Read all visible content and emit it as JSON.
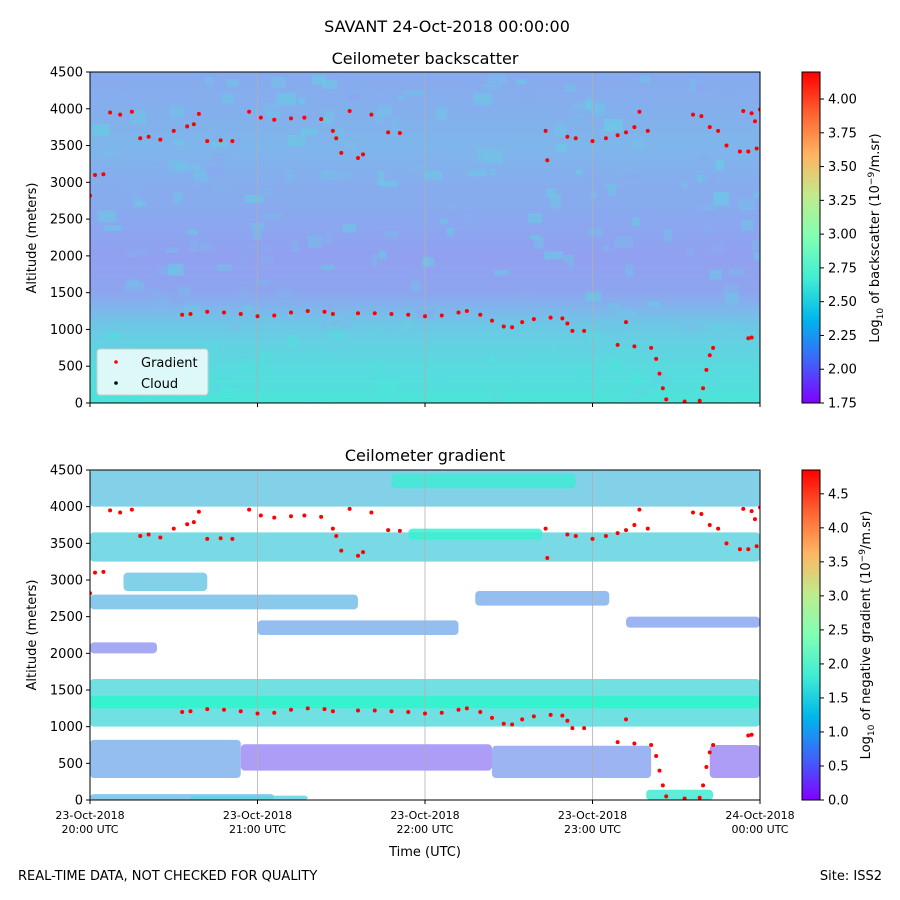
{
  "suptitle": "SAVANT 24-Oct-2018 00:00:00",
  "footer": {
    "left": "REAL-TIME DATA, NOT CHECKED FOR QUALITY",
    "right": "Site: ISS2"
  },
  "colors": {
    "gradient_marker": "#ff0000",
    "cloud_marker": "#000000",
    "grid": "#b0b0b0"
  },
  "chart_data": [
    {
      "type": "heatmap",
      "title": "Ceilometer backscatter",
      "ylabel": "Altitude (meters)",
      "xlabel": "",
      "xlim_hours": [
        20,
        24
      ],
      "ylim": [
        0,
        4500
      ],
      "yticks": [
        0,
        500,
        1000,
        1500,
        2000,
        2500,
        3000,
        3500,
        4000,
        4500
      ],
      "x_tick_hours": [
        20,
        21,
        22,
        23,
        24
      ],
      "grid": "vertical at hour ticks",
      "colorbar": {
        "label_parts": [
          "Log",
          "10",
          " of backscatter (10",
          "−9",
          "/m.sr)"
        ],
        "range": [
          1.75,
          4.2
        ],
        "ticks": [
          "1.75",
          "2.00",
          "2.25",
          "2.50",
          "2.75",
          "3.00",
          "3.25",
          "3.50",
          "3.75",
          "4.00"
        ],
        "tick_values": [
          1.75,
          2.0,
          2.25,
          2.5,
          2.75,
          3.0,
          3.25,
          3.5,
          3.75,
          4.0
        ],
        "colormap": "rainbow"
      },
      "legend": {
        "placement": "lower-left",
        "entries": [
          {
            "label": "Gradient",
            "color": "#ff0000"
          },
          {
            "label": "Cloud",
            "color": "#000000"
          }
        ]
      },
      "background_profile": {
        "altitude": [
          0,
          200,
          500,
          800,
          1100,
          1300,
          1500,
          2000,
          2500,
          3000,
          3500,
          3800,
          4200,
          4500
        ],
        "log_backscatter": [
          2.62,
          2.58,
          2.55,
          2.5,
          2.44,
          2.36,
          2.3,
          2.28,
          2.31,
          2.33,
          2.37,
          2.35,
          2.33,
          2.32
        ]
      }
    },
    {
      "type": "heatmap",
      "title": "Ceilometer gradient",
      "ylabel": "Altitude (meters)",
      "xlabel": "Time (UTC)",
      "xlim_hours": [
        20,
        24
      ],
      "ylim": [
        0,
        4500
      ],
      "yticks": [
        0,
        500,
        1000,
        1500,
        2000,
        2500,
        3000,
        3500,
        4000,
        4500
      ],
      "x_tick_hours": [
        20,
        21,
        22,
        23,
        24
      ],
      "xticklabels": [
        [
          "23-Oct-2018",
          "20:00 UTC"
        ],
        [
          "23-Oct-2018",
          "21:00 UTC"
        ],
        [
          "23-Oct-2018",
          "22:00 UTC"
        ],
        [
          "23-Oct-2018",
          "23:00 UTC"
        ],
        [
          "24-Oct-2018",
          "00:00 UTC"
        ]
      ],
      "grid": "vertical at hour ticks",
      "colorbar": {
        "label_parts": [
          "Log",
          "10",
          " of negative gradient (10",
          "−9",
          "/m.sr)"
        ],
        "range": [
          0.0,
          4.85
        ],
        "ticks": [
          "0.0",
          "0.5",
          "1.0",
          "1.5",
          "2.0",
          "2.5",
          "3.0",
          "3.5",
          "4.0",
          "4.5"
        ],
        "tick_values": [
          0.0,
          0.5,
          1.0,
          1.5,
          2.0,
          2.5,
          3.0,
          3.5,
          4.0,
          4.5
        ],
        "colormap": "rainbow"
      },
      "gradient_bands": [
        {
          "alt_low": 0,
          "alt_high": 80,
          "t_start": 20.0,
          "t_end": 21.1,
          "value": 1.3
        },
        {
          "alt_low": 0,
          "alt_high": 60,
          "t_start": 20.6,
          "t_end": 21.3,
          "value": 1.5
        },
        {
          "alt_low": 0,
          "alt_high": 140,
          "t_start": 23.32,
          "t_end": 23.72,
          "value": 1.8
        },
        {
          "alt_low": 300,
          "alt_high": 820,
          "t_start": 20.0,
          "t_end": 20.9,
          "value": 1.2
        },
        {
          "alt_low": 400,
          "alt_high": 760,
          "t_start": 20.9,
          "t_end": 22.4,
          "value": 0.9
        },
        {
          "alt_low": 300,
          "alt_high": 740,
          "t_start": 22.4,
          "t_end": 23.35,
          "value": 1.1
        },
        {
          "alt_low": 300,
          "alt_high": 750,
          "t_start": 23.7,
          "t_end": 24.0,
          "value": 0.9
        },
        {
          "alt_low": 1000,
          "alt_high": 1650,
          "t_start": 20.0,
          "t_end": 24.0,
          "value": 1.6
        },
        {
          "alt_low": 1250,
          "alt_high": 1420,
          "t_start": 20.0,
          "t_end": 24.0,
          "value": 2.0
        },
        {
          "alt_low": 2000,
          "alt_high": 2150,
          "t_start": 20.0,
          "t_end": 20.4,
          "value": 1.0
        },
        {
          "alt_low": 2250,
          "alt_high": 2450,
          "t_start": 21.0,
          "t_end": 22.2,
          "value": 1.2
        },
        {
          "alt_low": 2350,
          "alt_high": 2500,
          "t_start": 23.2,
          "t_end": 24.0,
          "value": 1.1
        },
        {
          "alt_low": 2600,
          "alt_high": 2800,
          "t_start": 20.0,
          "t_end": 21.6,
          "value": 1.3
        },
        {
          "alt_low": 2650,
          "alt_high": 2850,
          "t_start": 22.3,
          "t_end": 23.1,
          "value": 1.2
        },
        {
          "alt_low": 2850,
          "alt_high": 3100,
          "t_start": 20.2,
          "t_end": 20.7,
          "value": 1.4
        },
        {
          "alt_low": 3250,
          "alt_high": 3650,
          "t_start": 20.0,
          "t_end": 24.0,
          "value": 1.5
        },
        {
          "alt_low": 3550,
          "alt_high": 3700,
          "t_start": 21.9,
          "t_end": 22.7,
          "value": 1.9
        },
        {
          "alt_low": 4000,
          "alt_high": 4500,
          "t_start": 20.0,
          "t_end": 24.0,
          "value": 1.4
        },
        {
          "alt_low": 4250,
          "alt_high": 4450,
          "t_start": 21.8,
          "t_end": 22.9,
          "value": 1.8
        }
      ]
    }
  ],
  "gradient_points": [
    {
      "t": 20.0,
      "alt": 2820
    },
    {
      "t": 20.03,
      "alt": 3100
    },
    {
      "t": 20.08,
      "alt": 3110
    },
    {
      "t": 20.12,
      "alt": 3950
    },
    {
      "t": 20.18,
      "alt": 3920
    },
    {
      "t": 20.25,
      "alt": 3960
    },
    {
      "t": 20.3,
      "alt": 3600
    },
    {
      "t": 20.35,
      "alt": 3620
    },
    {
      "t": 20.42,
      "alt": 3580
    },
    {
      "t": 20.5,
      "alt": 3700
    },
    {
      "t": 20.58,
      "alt": 3760
    },
    {
      "t": 20.62,
      "alt": 3790
    },
    {
      "t": 20.65,
      "alt": 3930
    },
    {
      "t": 20.7,
      "alt": 3560
    },
    {
      "t": 20.78,
      "alt": 3570
    },
    {
      "t": 20.85,
      "alt": 3560
    },
    {
      "t": 20.95,
      "alt": 3960
    },
    {
      "t": 21.02,
      "alt": 3880
    },
    {
      "t": 21.1,
      "alt": 3850
    },
    {
      "t": 21.2,
      "alt": 3870
    },
    {
      "t": 21.28,
      "alt": 3880
    },
    {
      "t": 21.38,
      "alt": 3860
    },
    {
      "t": 21.45,
      "alt": 3700
    },
    {
      "t": 21.47,
      "alt": 3600
    },
    {
      "t": 21.5,
      "alt": 3400
    },
    {
      "t": 21.55,
      "alt": 3970
    },
    {
      "t": 21.6,
      "alt": 3330
    },
    {
      "t": 21.63,
      "alt": 3380
    },
    {
      "t": 21.68,
      "alt": 3920
    },
    {
      "t": 21.78,
      "alt": 3680
    },
    {
      "t": 21.85,
      "alt": 3670
    },
    {
      "t": 22.72,
      "alt": 3700
    },
    {
      "t": 22.73,
      "alt": 3300
    },
    {
      "t": 22.85,
      "alt": 3620
    },
    {
      "t": 22.9,
      "alt": 3600
    },
    {
      "t": 23.0,
      "alt": 3560
    },
    {
      "t": 23.08,
      "alt": 3600
    },
    {
      "t": 23.15,
      "alt": 3640
    },
    {
      "t": 23.2,
      "alt": 3680
    },
    {
      "t": 23.25,
      "alt": 3750
    },
    {
      "t": 23.28,
      "alt": 3960
    },
    {
      "t": 23.33,
      "alt": 3700
    },
    {
      "t": 23.6,
      "alt": 3920
    },
    {
      "t": 23.65,
      "alt": 3900
    },
    {
      "t": 23.7,
      "alt": 3750
    },
    {
      "t": 23.75,
      "alt": 3700
    },
    {
      "t": 23.8,
      "alt": 3500
    },
    {
      "t": 23.88,
      "alt": 3420
    },
    {
      "t": 23.93,
      "alt": 3420
    },
    {
      "t": 23.98,
      "alt": 3460
    },
    {
      "t": 23.9,
      "alt": 3970
    },
    {
      "t": 23.95,
      "alt": 3940
    },
    {
      "t": 23.97,
      "alt": 3830
    },
    {
      "t": 24.0,
      "alt": 3990
    },
    {
      "t": 20.55,
      "alt": 1200
    },
    {
      "t": 20.6,
      "alt": 1210
    },
    {
      "t": 20.7,
      "alt": 1240
    },
    {
      "t": 20.8,
      "alt": 1230
    },
    {
      "t": 20.9,
      "alt": 1210
    },
    {
      "t": 21.0,
      "alt": 1180
    },
    {
      "t": 21.1,
      "alt": 1190
    },
    {
      "t": 21.2,
      "alt": 1230
    },
    {
      "t": 21.3,
      "alt": 1250
    },
    {
      "t": 21.4,
      "alt": 1240
    },
    {
      "t": 21.45,
      "alt": 1210
    },
    {
      "t": 21.6,
      "alt": 1220
    },
    {
      "t": 21.7,
      "alt": 1220
    },
    {
      "t": 21.8,
      "alt": 1210
    },
    {
      "t": 21.9,
      "alt": 1200
    },
    {
      "t": 22.0,
      "alt": 1180
    },
    {
      "t": 22.1,
      "alt": 1190
    },
    {
      "t": 22.2,
      "alt": 1230
    },
    {
      "t": 22.25,
      "alt": 1250
    },
    {
      "t": 22.33,
      "alt": 1200
    },
    {
      "t": 22.4,
      "alt": 1120
    },
    {
      "t": 22.47,
      "alt": 1040
    },
    {
      "t": 22.52,
      "alt": 1030
    },
    {
      "t": 22.58,
      "alt": 1100
    },
    {
      "t": 22.65,
      "alt": 1140
    },
    {
      "t": 22.75,
      "alt": 1160
    },
    {
      "t": 22.82,
      "alt": 1150
    },
    {
      "t": 22.85,
      "alt": 1080
    },
    {
      "t": 22.88,
      "alt": 980
    },
    {
      "t": 22.95,
      "alt": 980
    },
    {
      "t": 23.2,
      "alt": 1100
    },
    {
      "t": 23.15,
      "alt": 790
    },
    {
      "t": 23.25,
      "alt": 770
    },
    {
      "t": 23.35,
      "alt": 750
    },
    {
      "t": 23.38,
      "alt": 600
    },
    {
      "t": 23.4,
      "alt": 400
    },
    {
      "t": 23.42,
      "alt": 200
    },
    {
      "t": 23.44,
      "alt": 50
    },
    {
      "t": 23.55,
      "alt": 20
    },
    {
      "t": 23.64,
      "alt": 30
    },
    {
      "t": 23.66,
      "alt": 200
    },
    {
      "t": 23.68,
      "alt": 450
    },
    {
      "t": 23.7,
      "alt": 650
    },
    {
      "t": 23.72,
      "alt": 750
    },
    {
      "t": 23.93,
      "alt": 880
    },
    {
      "t": 23.95,
      "alt": 890
    }
  ]
}
